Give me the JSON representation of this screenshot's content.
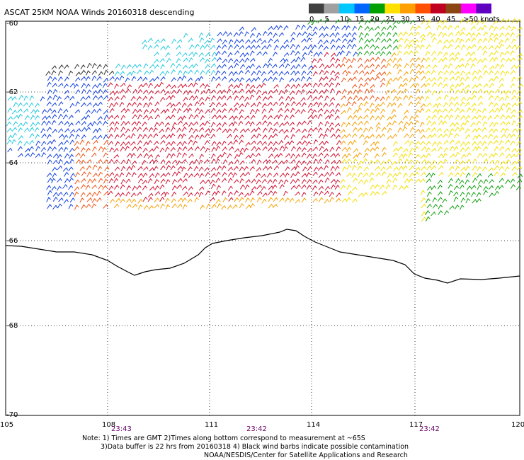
{
  "title": "ASCAT 25KM NOAA Winds 20160318 descending",
  "legend": {
    "labels": [
      "0",
      "5",
      "10",
      "15",
      "20",
      "25",
      "30",
      "35",
      "40",
      "45",
      ">50 knots"
    ],
    "colors": [
      "#404040",
      "#a0a0a0",
      "#00c8ff",
      "#0064ff",
      "#00a000",
      "#ffe000",
      "#ffa000",
      "#ff5000",
      "#c00020",
      "#8b4513",
      "#ff00ff",
      "#6000c0"
    ]
  },
  "lat_labels": [
    "-60",
    "-62",
    "-64",
    "-66",
    "-68",
    "-70"
  ],
  "lon_labels": [
    "105",
    "108",
    "111",
    "114",
    "117",
    "120"
  ],
  "time_labels": [
    "23:43",
    "23:42",
    "23:42"
  ],
  "notes": [
    "Note: 1) Times are GMT 2)Times along bottom correspond to measurement at ~65S",
    "3)Data buffer is 22 hrs from 20160318 4) Black wind barbs indicate possible contamination",
    "NOAA/NESDIS/Center for Satellite Applications and Research"
  ],
  "colors": {
    "time_text": "#660066",
    "coastline": "#000000",
    "grid": "#000000"
  }
}
